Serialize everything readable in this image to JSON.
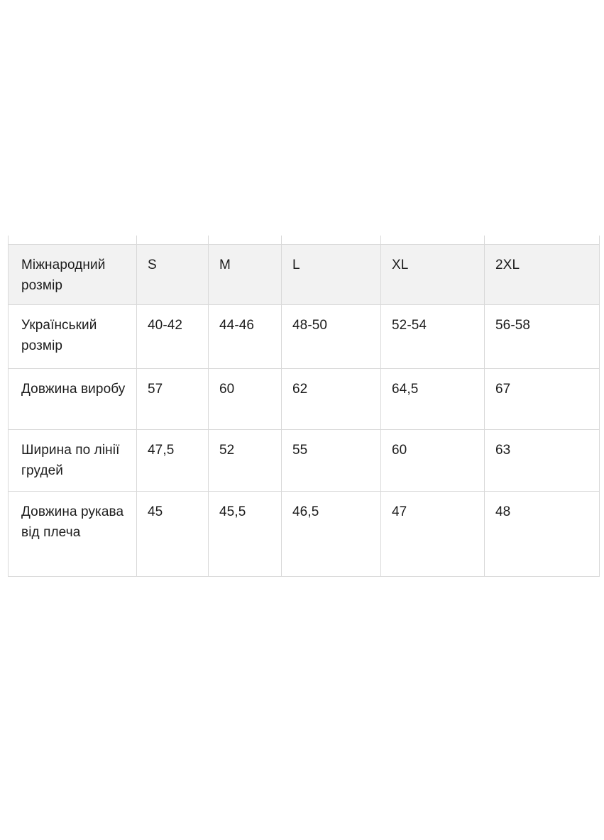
{
  "colors": {
    "page_background": "#ffffff",
    "header_row_background": "#f2f2f2",
    "grid_border": "#d9d9d9",
    "text": "#1c1c1c"
  },
  "size_table": {
    "header": {
      "label": "Міжнародний розмір",
      "sizes": [
        "S",
        "M",
        "L",
        "XL",
        "2XL"
      ]
    },
    "rows": [
      {
        "label": "Український розмір",
        "cells": [
          "40-42",
          "44-46",
          "48-50",
          "52-54",
          "56-58"
        ]
      },
      {
        "label": "Довжина виробу",
        "cells": [
          "57",
          "60",
          "62",
          "64,5",
          "67"
        ]
      },
      {
        "label": "Ширина по лінії грудей",
        "cells": [
          "47,5",
          "52",
          "55",
          "60",
          "63"
        ]
      },
      {
        "label": "Довжина рукава від плеча",
        "cells": [
          "45",
          "45,5",
          "46,5",
          "47",
          "48"
        ]
      }
    ]
  },
  "chart_data": {
    "type": "table",
    "title": "",
    "columns": [
      "Міжнародний розмір",
      "S",
      "M",
      "L",
      "XL",
      "2XL"
    ],
    "rows": [
      [
        "Український розмір",
        "40-42",
        "44-46",
        "48-50",
        "52-54",
        "56-58"
      ],
      [
        "Довжина виробу",
        "57",
        "60",
        "62",
        "64,5",
        "67"
      ],
      [
        "Ширина по лінії грудей",
        "47,5",
        "52",
        "55",
        "60",
        "63"
      ],
      [
        "Довжина рукава від плеча",
        "45",
        "45,5",
        "46,5",
        "47",
        "48"
      ]
    ]
  }
}
